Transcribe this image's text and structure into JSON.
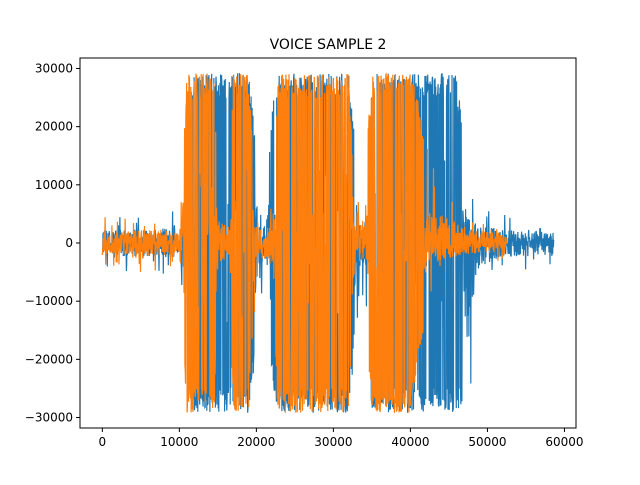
{
  "chart_data": {
    "type": "line",
    "title": "VOICE SAMPLE 2",
    "xlabel": "",
    "ylabel": "",
    "xlim": [
      -2900,
      61500
    ],
    "ylim": [
      -31800,
      31800
    ],
    "x_ticks": [
      0,
      10000,
      20000,
      30000,
      40000,
      50000,
      60000
    ],
    "x_tick_labels": [
      "0",
      "10000",
      "20000",
      "30000",
      "40000",
      "50000",
      "60000"
    ],
    "y_ticks": [
      -30000,
      -20000,
      -10000,
      0,
      10000,
      20000,
      30000
    ],
    "y_tick_labels": [
      "−30000",
      "−20000",
      "−10000",
      "0",
      "10000",
      "20000",
      "30000"
    ],
    "grid": false,
    "legend": "none",
    "series": [
      {
        "color": "#1f77b4",
        "num_samples": 58600,
        "envelope": {
          "x": [
            0,
            2000,
            5000,
            8000,
            10000,
            10500,
            12000,
            15000,
            17000,
            19000,
            21000,
            22500,
            24000,
            28000,
            32000,
            33000,
            34000,
            35000,
            37000,
            40000,
            42000,
            44000,
            46000,
            47500,
            49000,
            52000,
            55000,
            58600
          ],
          "upper": [
            5500,
            5000,
            5200,
            5700,
            5500,
            16000,
            29200,
            29200,
            29200,
            29200,
            6000,
            29200,
            29200,
            29200,
            29200,
            15000,
            6000,
            29200,
            29200,
            29200,
            29200,
            29200,
            29200,
            10000,
            7000,
            5000,
            4500,
            4000
          ],
          "lower": [
            -6000,
            -5500,
            -5000,
            -5500,
            -5500,
            -18000,
            -29200,
            -29200,
            -29200,
            -29200,
            -7000,
            -29200,
            -29200,
            -29200,
            -29200,
            -15000,
            -8000,
            -29200,
            -29200,
            -29200,
            -29200,
            -29200,
            -29200,
            -29200,
            -10000,
            -5000,
            -5000,
            -5000
          ]
        }
      },
      {
        "color": "#ff7f0e",
        "num_samples": 52500,
        "envelope": {
          "x": [
            0,
            2000,
            5000,
            8000,
            10000,
            10500,
            11000,
            14500,
            15000,
            16500,
            17000,
            19000,
            20000,
            22000,
            22800,
            23000,
            25000,
            28000,
            31000,
            32000,
            33000,
            34000,
            35000,
            37000,
            40000,
            41000,
            42500,
            45000,
            48000,
            50000,
            52500
          ],
          "upper": [
            4500,
            4200,
            5000,
            4700,
            4000,
            16000,
            29200,
            29200,
            9000,
            6000,
            29200,
            29200,
            7000,
            6000,
            29200,
            29200,
            29200,
            29200,
            29200,
            29200,
            6000,
            11000,
            29200,
            29200,
            29200,
            25000,
            14000,
            9000,
            5000,
            4500,
            3500
          ],
          "lower": [
            -4500,
            -4200,
            -5000,
            -4700,
            -4000,
            -18000,
            -29200,
            -29200,
            -9000,
            -6000,
            -29200,
            -29200,
            -7000,
            -6000,
            -29200,
            -29200,
            -29200,
            -29200,
            -29200,
            -29200,
            -6000,
            -12000,
            -29200,
            -29200,
            -29200,
            -20000,
            -9000,
            -6000,
            -4000,
            -4000,
            -3000
          ]
        }
      }
    ]
  }
}
